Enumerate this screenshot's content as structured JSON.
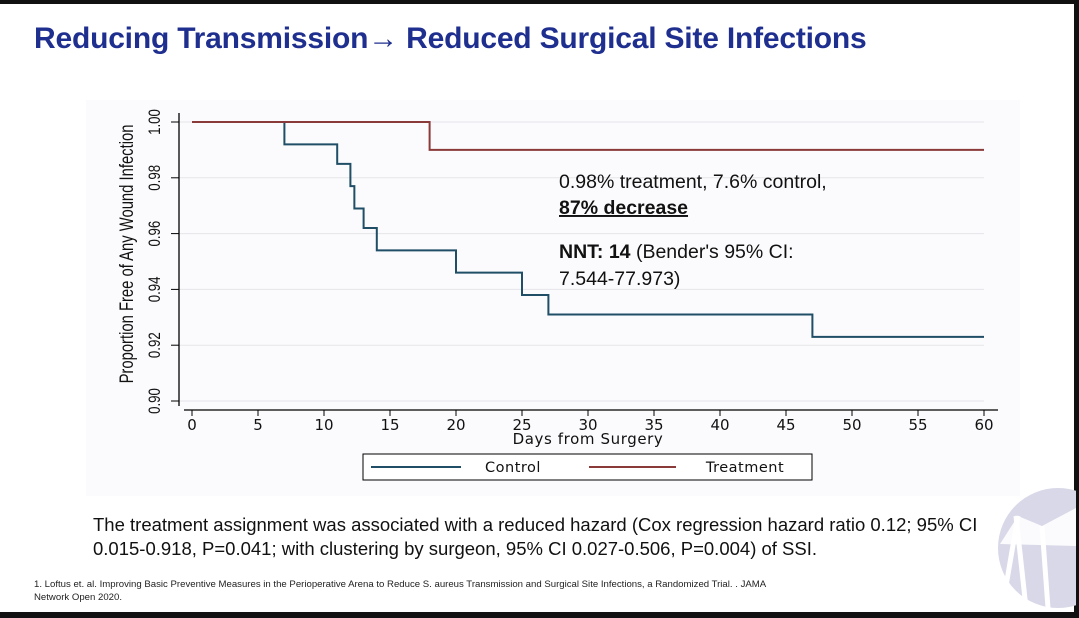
{
  "slide": {
    "title": "Reducing Transmission→ Reduced Surgical Site Infections",
    "summary": "The treatment assignment was associated with a reduced hazard (Cox regression hazard ratio 0.12; 95% CI 0.015-0.918, P=0.041; with clustering by surgeon, 95% CI 0.027-0.506, P=0.004) of SSI.",
    "footnote": "1. Loftus et. al. Improving Basic Preventive Measures in the Perioperative Arena to Reduce S. aureus Transmission and Surgical Site Infections, a Randomized Trial. . JAMA Network Open 2020."
  },
  "annotations": {
    "line1": "0.98% treatment, 7.6% control,",
    "line2": "87% decrease",
    "nnt_label": "NNT: 14",
    "nnt_rest": " (Bender's  95% CI:",
    "line4": "7.544-77.973)"
  },
  "colors": {
    "title": "#1f2f8f",
    "control": "#1f4e66",
    "treatment": "#8b3a3a",
    "axis": "#000000",
    "grid": "#e6e6ea"
  },
  "chart_data": {
    "type": "line",
    "step": true,
    "xlabel": "Days from Surgery",
    "ylabel": "Proportion Free of Any Wound Infection",
    "xlim": [
      0,
      60
    ],
    "ylim": [
      0.9,
      1.0
    ],
    "xticks": [
      "0",
      "5",
      "10",
      "15",
      "20",
      "25",
      "30",
      "35",
      "40",
      "45",
      "50",
      "55",
      "60"
    ],
    "yticks": [
      "0.90",
      "0.92",
      "0.94",
      "0.96",
      "0.98",
      "1.00"
    ],
    "grid": true,
    "legend_position": "bottom",
    "series": [
      {
        "name": "Control",
        "color": "#1f4e66",
        "x": [
          0,
          7,
          11,
          12,
          12.3,
          13,
          14,
          20,
          25,
          27,
          47,
          60
        ],
        "y": [
          1.0,
          0.992,
          0.985,
          0.977,
          0.969,
          0.962,
          0.954,
          0.946,
          0.938,
          0.931,
          0.923,
          0.923
        ]
      },
      {
        "name": "Treatment",
        "color": "#8b3a3a",
        "x": [
          0,
          18,
          60
        ],
        "y": [
          1.0,
          0.99,
          0.99
        ]
      }
    ]
  }
}
